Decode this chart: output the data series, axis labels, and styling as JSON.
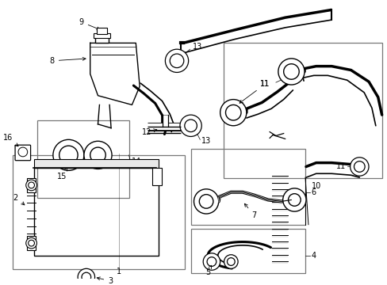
{
  "bg_color": "#ffffff",
  "line_color": "#000000",
  "box_color": "#777777",
  "font_size": 7.0,
  "figsize": [
    4.89,
    3.6
  ],
  "dpi": 100
}
